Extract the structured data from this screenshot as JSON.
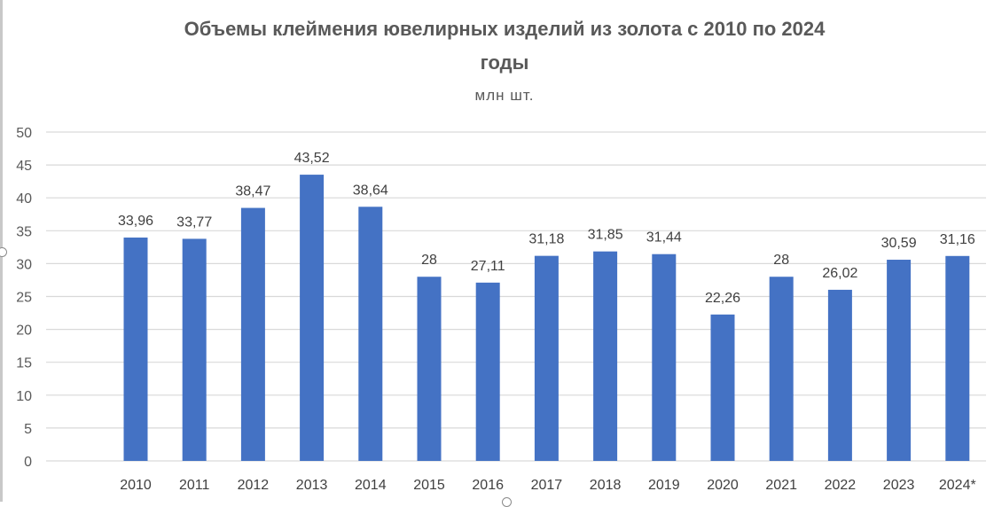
{
  "chart_data": {
    "type": "bar",
    "title_line1": "Объемы клеймения ювелирных изделий из золота с 2010 по 2024",
    "title_line2": "годы",
    "subtitle": "млн шт.",
    "categories": [
      "2010",
      "2011",
      "2012",
      "2013",
      "2014",
      "2015",
      "2016",
      "2017",
      "2018",
      "2019",
      "2020",
      "2021",
      "2022",
      "2023",
      "2024*"
    ],
    "values": [
      33.96,
      33.77,
      38.47,
      43.52,
      38.64,
      28,
      27.11,
      31.18,
      31.85,
      31.44,
      22.26,
      28,
      26.02,
      30.59,
      31.16
    ],
    "value_labels": [
      "33,96",
      "33,77",
      "38,47",
      "43,52",
      "38,64",
      "28",
      "27,11",
      "31,18",
      "31,85",
      "31,44",
      "22,26",
      "28",
      "26,02",
      "30,59",
      "31,16"
    ],
    "y_ticks": [
      "0",
      "5",
      "10",
      "15",
      "20",
      "25",
      "30",
      "35",
      "40",
      "45",
      "50"
    ],
    "ylim": [
      0,
      50
    ],
    "grid": true,
    "legend": "none",
    "bar_color": "#4472C4"
  }
}
